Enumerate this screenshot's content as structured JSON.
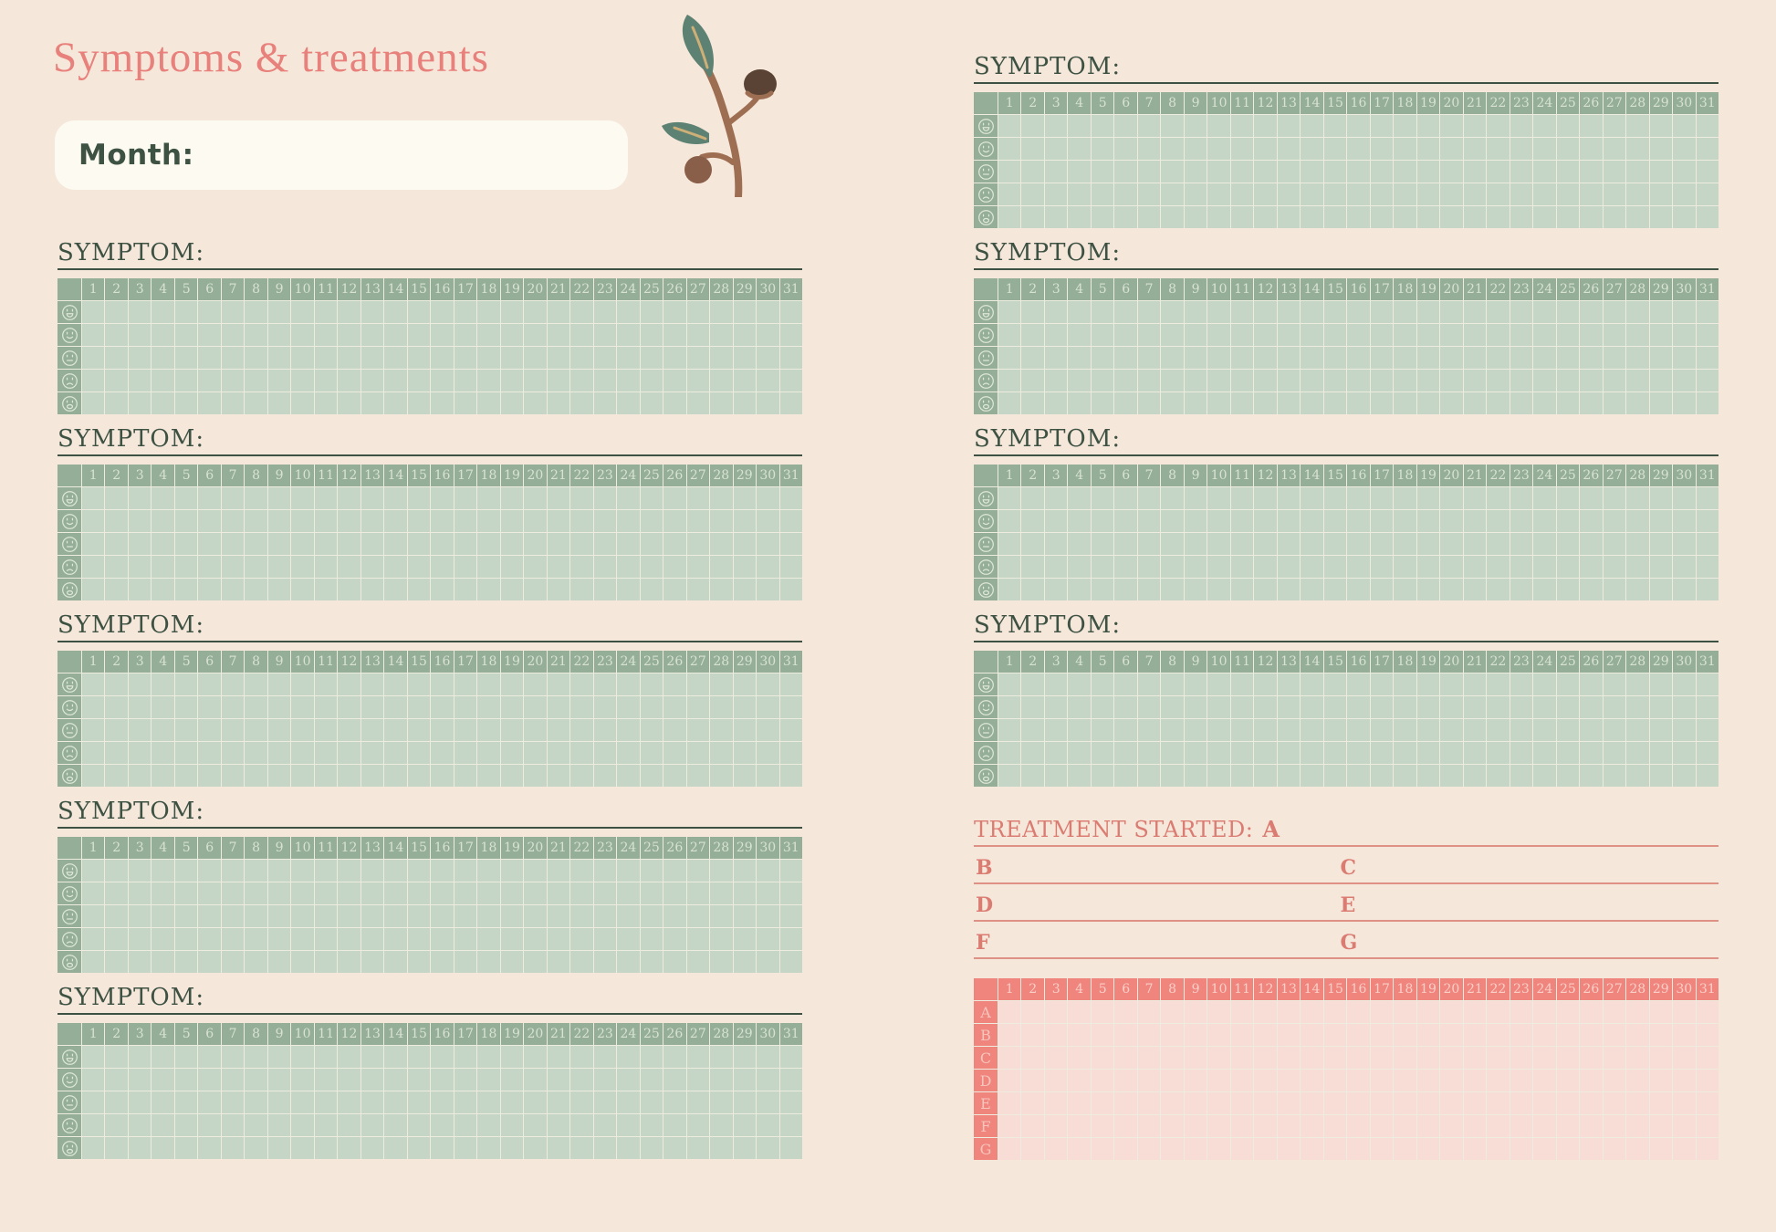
{
  "header": {
    "title": "Symptoms & treatments",
    "month_label": "Month:",
    "month_value": ""
  },
  "icons": {
    "decoration": "eucalyptus-branch",
    "mood_scale": [
      "grin-face",
      "smile-face",
      "neutral-face",
      "frown-face",
      "sad-face"
    ]
  },
  "symptom_tracker": {
    "days": [
      1,
      2,
      3,
      4,
      5,
      6,
      7,
      8,
      9,
      10,
      11,
      12,
      13,
      14,
      15,
      16,
      17,
      18,
      19,
      20,
      21,
      22,
      23,
      24,
      25,
      26,
      27,
      28,
      29,
      30,
      31
    ],
    "mood_rows_per_section": 5,
    "left_sections": [
      {
        "label": "SYMPTOM:",
        "value": ""
      },
      {
        "label": "SYMPTOM:",
        "value": ""
      },
      {
        "label": "SYMPTOM:",
        "value": ""
      },
      {
        "label": "SYMPTOM:",
        "value": ""
      },
      {
        "label": "SYMPTOM:",
        "value": ""
      }
    ],
    "right_sections": [
      {
        "label": "SYMPTOM:",
        "value": ""
      },
      {
        "label": "SYMPTOM:",
        "value": ""
      },
      {
        "label": "SYMPTOM:",
        "value": ""
      },
      {
        "label": "SYMPTOM:",
        "value": ""
      }
    ]
  },
  "treatment": {
    "heading": "TREATMENT STARTED:",
    "started_value": "A",
    "letter_lines": [
      {
        "left": "B",
        "right": "C",
        "left_value": "",
        "right_value": ""
      },
      {
        "left": "D",
        "right": "E",
        "left_value": "",
        "right_value": ""
      },
      {
        "left": "F",
        "right": "G",
        "left_value": "",
        "right_value": ""
      }
    ],
    "grid_row_labels": [
      "A",
      "B",
      "C",
      "D",
      "E",
      "F",
      "G"
    ]
  },
  "colors": {
    "background": "#f5e7da",
    "title": "#e8817c",
    "green_text": "#3e5244",
    "grid_header_green": "#94ae98",
    "grid_body_green": "#c5d6c6",
    "gridline": "#eeebdf",
    "month_box": "#fdfaf1",
    "pink_text": "#db7c73",
    "pink_line": "#e09186",
    "grid_header_pink": "#f0857e",
    "grid_body_pink": "#f8dcd6"
  }
}
